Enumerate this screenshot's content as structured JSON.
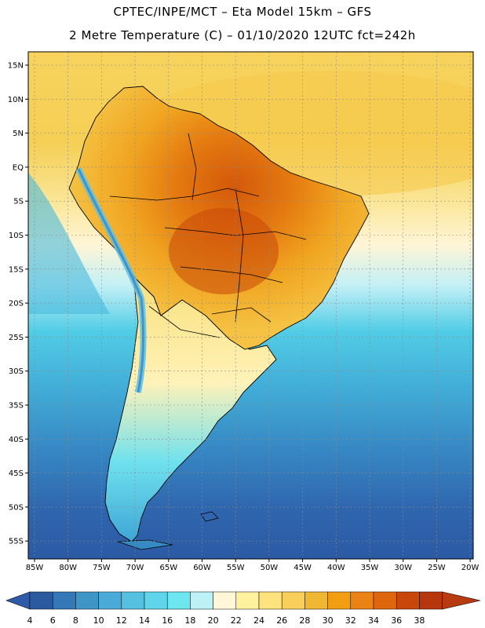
{
  "header": {
    "title_line1": "CPTEC/INPE/MCT –  Eta Model 15km – GFS",
    "title_line2": "2 Metre Temperature (C) – 01/10/2020 12UTC fct=242h"
  },
  "map": {
    "lat_labels": [
      "15N",
      "10N",
      "5N",
      "EQ",
      "5S",
      "10S",
      "15S",
      "20S",
      "25S",
      "30S",
      "35S",
      "40S",
      "45S",
      "50S",
      "55S"
    ],
    "lon_labels": [
      "85W",
      "80W",
      "75W",
      "70W",
      "65W",
      "60W",
      "55W",
      "50W",
      "45W",
      "40W",
      "35W",
      "30W",
      "25W",
      "20W"
    ],
    "colors": {
      "land_hot": "#f3a51c",
      "land_very_hot": "#dd6a0c",
      "ocean_warm": "#f6d35e",
      "ocean_cool": "#3ab4d6",
      "ocean_cold": "#2d6ab3",
      "coast": "#000000"
    }
  },
  "colorbar": {
    "labels": [
      "4",
      "6",
      "8",
      "10",
      "12",
      "14",
      "16",
      "18",
      "20",
      "22",
      "24",
      "26",
      "28",
      "30",
      "32",
      "34",
      "36",
      "38"
    ],
    "colors": [
      "#2c5aa0",
      "#3478b8",
      "#3e95c8",
      "#4aaad8",
      "#55c0e0",
      "#5fd4ea",
      "#6de6f0",
      "#bdf1f8",
      "#fff7d8",
      "#fff19e",
      "#fde27e",
      "#f7cf5a",
      "#f0b832",
      "#f19e12",
      "#ea8314",
      "#df660c",
      "#c9470a",
      "#b8360e"
    ],
    "left_arrow_color": "#2f5aa8",
    "right_arrow_color": "#b83a10"
  }
}
